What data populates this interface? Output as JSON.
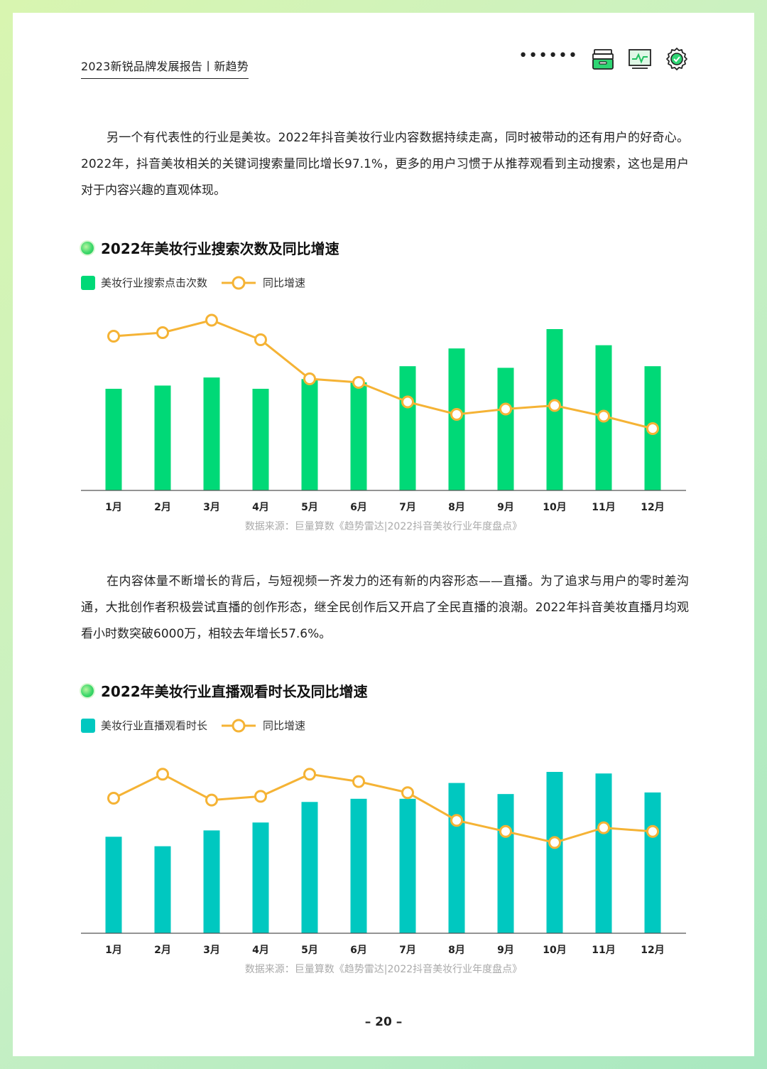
{
  "header": {
    "title": "2023新锐品牌发展报告丨新趋势",
    "dots": "••••••",
    "icons": [
      "archive-icon",
      "chart-monitor-icon",
      "gear-check-icon"
    ]
  },
  "paragraphs": {
    "p1": "另一个有代表性的行业是美妆。2022年抖音美妆行业内容数据持续走高，同时被带动的还有用户的好奇心。2022年，抖音美妆相关的关键词搜索量同比增长97.1%，更多的用户习惯于从推荐观看到主动搜索，这也是用户对于内容兴趣的直观体现。",
    "p2": "在内容体量不断增长的背后，与短视频一齐发力的还有新的内容形态——直播。为了追求与用户的零时差沟通，大批创作者积极尝试直播的创作形态，继全民创作后又开启了全民直播的浪潮。2022年抖音美妆直播月均观看小时数突破6000万，相较去年增长57.6%。"
  },
  "chart_data": [
    {
      "type": "bar",
      "title": "2022年美妆行业搜索次数及同比增速",
      "categories": [
        "1月",
        "2月",
        "3月",
        "4月",
        "5月",
        "6月",
        "7月",
        "8月",
        "9月",
        "10月",
        "11月",
        "12月"
      ],
      "series": [
        {
          "name": "美妆行业搜索点击次数",
          "kind": "bar",
          "color": "#00d977",
          "values": [
            63,
            65,
            70,
            63,
            69,
            67,
            77,
            88,
            76,
            100,
            90,
            77
          ]
        },
        {
          "name": "同比增速",
          "kind": "line",
          "color": "#f5b335",
          "values": [
            86,
            88,
            95,
            84,
            62,
            60,
            49,
            42,
            45,
            47,
            41,
            34
          ]
        }
      ],
      "source": "数据来源：巨量算数《趋势雷达|2022抖音美妆行业年度盘点》"
    },
    {
      "type": "bar",
      "title": "2022年美妆行业直播观看时长及同比增速",
      "categories": [
        "1月",
        "2月",
        "3月",
        "4月",
        "5月",
        "6月",
        "7月",
        "8月",
        "9月",
        "10月",
        "11月",
        "12月"
      ],
      "series": [
        {
          "name": "美妆行业直播观看时长",
          "kind": "bar",
          "color": "#00c8c0",
          "values": [
            61,
            55,
            65,
            70,
            83,
            85,
            85,
            95,
            88,
            102,
            101,
            89
          ]
        },
        {
          "name": "同比增速",
          "kind": "line",
          "color": "#f5b335",
          "values": [
            75,
            88,
            74,
            76,
            88,
            84,
            78,
            63,
            57,
            51,
            59,
            57
          ]
        }
      ],
      "source": "数据来源：巨量算数《趋势雷达|2022抖音美妆行业年度盘点》"
    }
  ],
  "page_number": "– 20 –"
}
